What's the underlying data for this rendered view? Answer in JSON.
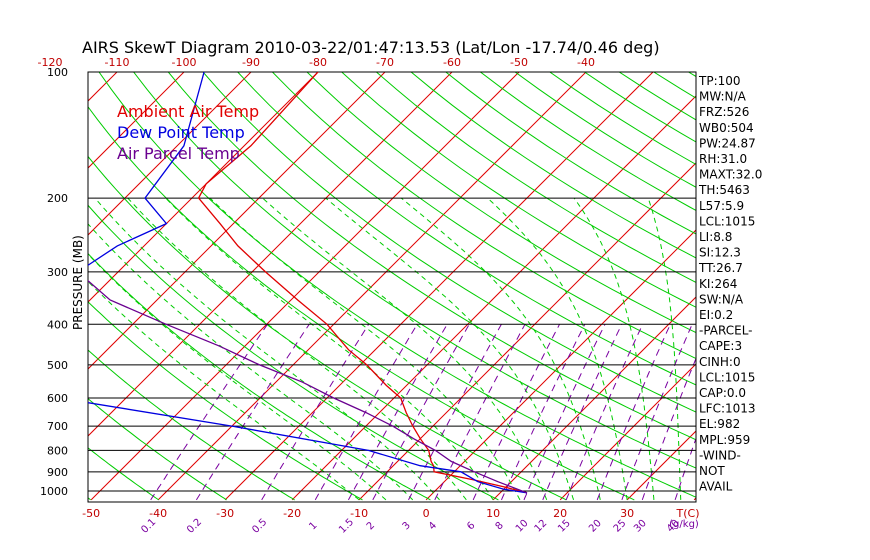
{
  "chart_data": {
    "type": "line",
    "title": "AIRS SkewT Diagram 2010-03-22/01:47:13.53 (Lat/Lon -17.74/0.46 deg)",
    "ylabel": "PRESSURE (MB)",
    "y_scale": "log",
    "ylim": [
      1050,
      100
    ],
    "pressure_ticks": [
      100,
      200,
      300,
      400,
      500,
      600,
      700,
      800,
      900,
      1000
    ],
    "bottom_temp_ticks": [
      -50,
      -40,
      -30,
      -20,
      -10,
      0,
      10,
      20,
      30
    ],
    "top_temp_ticks": [
      -120,
      -110,
      -100,
      -90,
      -80,
      -70,
      -60,
      -50,
      -40
    ],
    "bottom_temp_unit": "T(C)",
    "mixing_ratio_labels": [
      "0.1",
      "0.2",
      "0.5",
      "1",
      "1.5",
      "2",
      "3",
      "4",
      "6",
      "8",
      "10",
      "12",
      "15",
      "20",
      "25",
      "30",
      "40"
    ],
    "mixing_ratio_unit": "(g/kg)",
    "legend": [
      {
        "label": "Ambient Air Temp",
        "color": "#e00000"
      },
      {
        "label": "Dew Point Temp",
        "color": "#0000e0"
      },
      {
        "label": "Air Parcel Temp",
        "color": "#6a0090"
      }
    ],
    "series": [
      {
        "name": "Ambient Air Temp",
        "color": "#e00000",
        "points": [
          [
            100,
            -80
          ],
          [
            150,
            -79
          ],
          [
            185,
            -80
          ],
          [
            200,
            -79
          ],
          [
            230,
            -72
          ],
          [
            260,
            -66
          ],
          [
            300,
            -58
          ],
          [
            350,
            -49
          ],
          [
            400,
            -41
          ],
          [
            460,
            -34
          ],
          [
            500,
            -29
          ],
          [
            560,
            -23
          ],
          [
            600,
            -19
          ],
          [
            650,
            -16
          ],
          [
            700,
            -13
          ],
          [
            750,
            -10
          ],
          [
            800,
            -7
          ],
          [
            850,
            -5
          ],
          [
            870,
            -4
          ],
          [
            900,
            -3
          ],
          [
            940,
            4
          ],
          [
            980,
            10
          ],
          [
            1010,
            14
          ]
        ]
      },
      {
        "name": "Dew Point Temp",
        "color": "#0000e0",
        "points": [
          [
            100,
            -97
          ],
          [
            150,
            -89
          ],
          [
            200,
            -87
          ],
          [
            230,
            -80
          ],
          [
            260,
            -84
          ],
          [
            300,
            -86
          ],
          [
            350,
            -85
          ],
          [
            400,
            -83
          ],
          [
            460,
            -86
          ],
          [
            510,
            -89
          ],
          [
            600,
            -70
          ],
          [
            700,
            -40
          ],
          [
            800,
            -16
          ],
          [
            870,
            -6
          ],
          [
            900,
            1
          ],
          [
            950,
            5
          ],
          [
            990,
            10
          ],
          [
            1010,
            14
          ]
        ]
      },
      {
        "name": "Air Parcel Temp",
        "color": "#6a0090",
        "points": [
          [
            100,
            -133
          ],
          [
            150,
            -116
          ],
          [
            200,
            -101
          ],
          [
            250,
            -95
          ],
          [
            300,
            -86
          ],
          [
            350,
            -77
          ],
          [
            400,
            -65
          ],
          [
            450,
            -54
          ],
          [
            500,
            -45
          ],
          [
            550,
            -36
          ],
          [
            600,
            -29
          ],
          [
            650,
            -22
          ],
          [
            700,
            -16
          ],
          [
            750,
            -11
          ],
          [
            800,
            -6
          ],
          [
            850,
            -2
          ],
          [
            900,
            3
          ],
          [
            950,
            8
          ],
          [
            1010,
            14
          ]
        ]
      }
    ]
  },
  "indices": [
    "TP:100",
    "MW:N/A",
    "FRZ:526",
    "WB0:504",
    "PW:24.87",
    "RH:31.0",
    "MAXT:32.0",
    "TH:5463",
    "L57:5.9",
    "LCL:1015",
    "LI:8.8",
    "SI:12.3",
    "TT:26.7",
    "KI:264",
    "SW:N/A",
    "EI:0.2",
    "-PARCEL-",
    "CAPE:3",
    "CINH:0",
    "LCL:1015",
    "CAP:0.0",
    "LFC:1013",
    "EL:982",
    "MPL:959",
    "-WIND-",
    "NOT",
    "AVAIL"
  ],
  "colors": {
    "isotherm": "#e00000",
    "dry_adiabat": "#00cc00",
    "moist_adiabat": "#00cc00",
    "mixing_ratio": "#7a00a0",
    "frame": "#000000"
  }
}
